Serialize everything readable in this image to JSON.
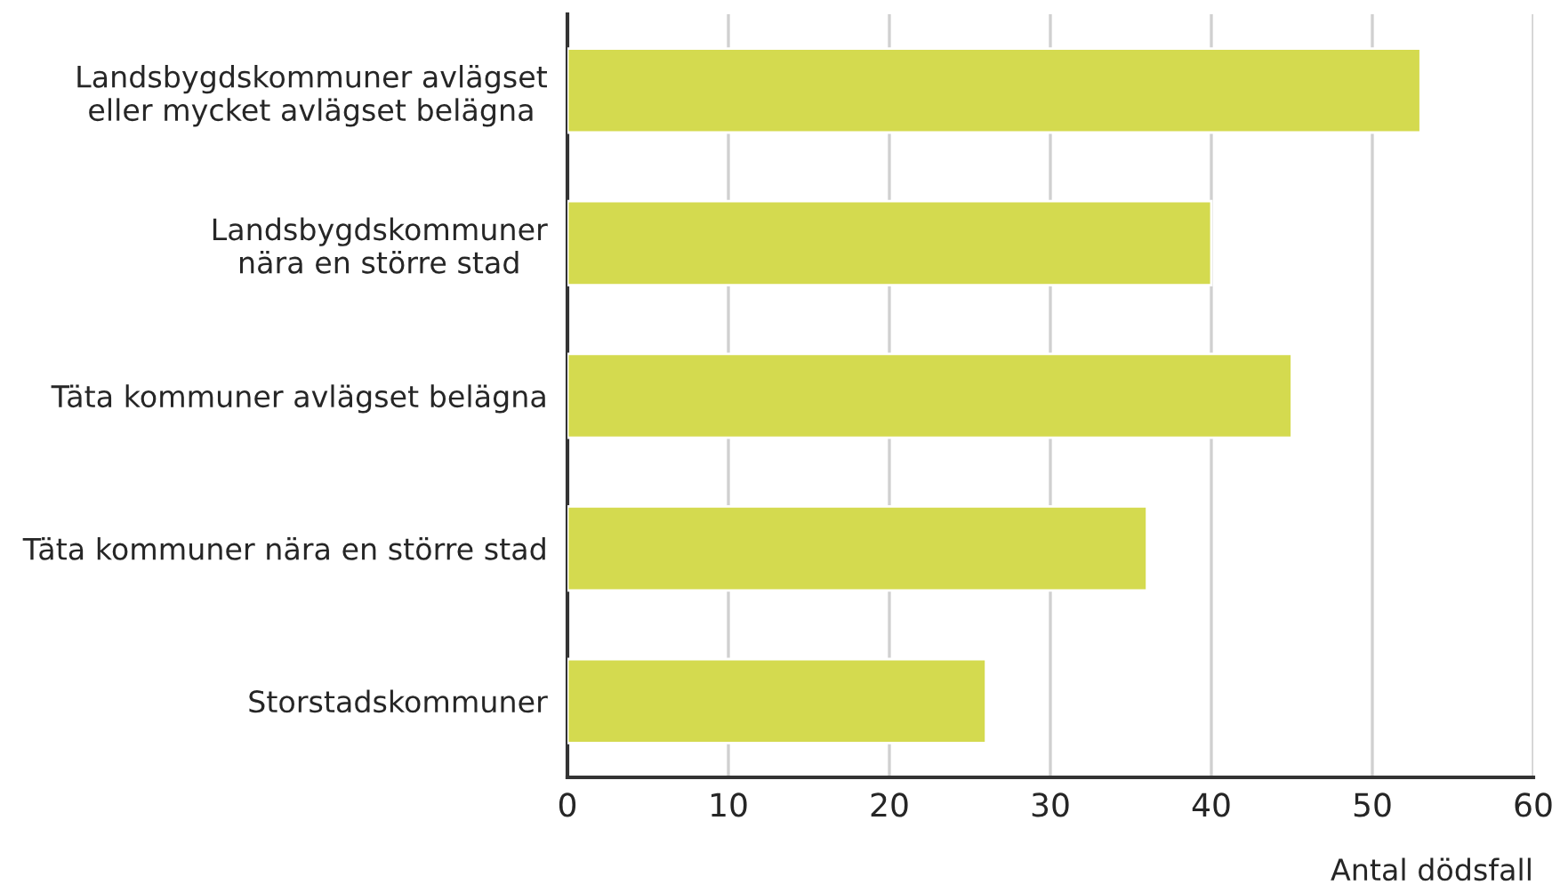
{
  "chart_data": {
    "type": "bar",
    "orientation": "horizontal",
    "xlabel": "Antal dödsfall",
    "categories": [
      "Landsbygdskommuner avlägset\neller mycket avlägset belägna",
      "Landsbygdskommuner\nnära en större stad",
      "Täta kommuner avlägset belägna",
      "Täta kommuner nära en större stad",
      "Storstadskommuner"
    ],
    "values": [
      53,
      40,
      45,
      36,
      26
    ],
    "color": "#d4da4f",
    "xlim": [
      0,
      60
    ],
    "xticks": [
      0,
      10,
      20,
      30,
      40,
      50,
      60
    ],
    "grid": "x"
  }
}
